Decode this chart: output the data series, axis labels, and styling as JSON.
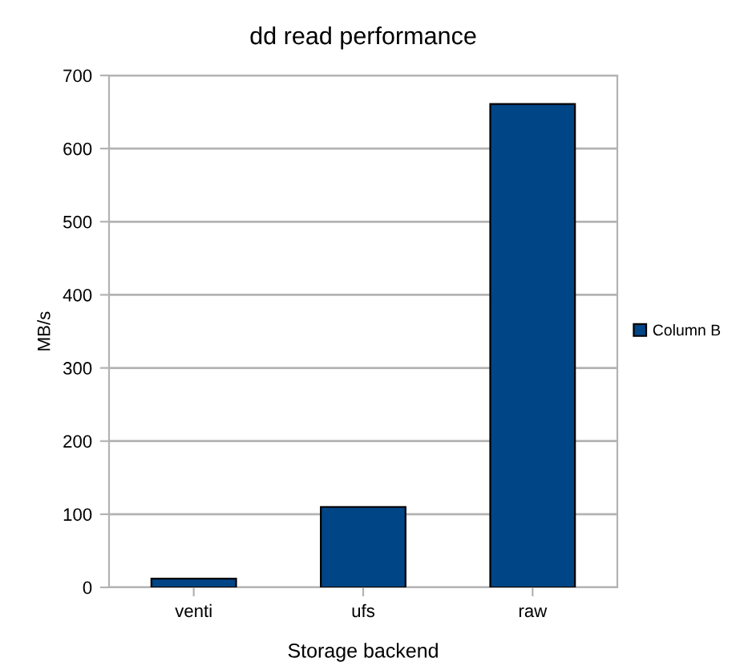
{
  "chart_data": {
    "type": "bar",
    "title": "dd read performance",
    "xlabel": "Storage backend",
    "ylabel": "MB/s",
    "categories": [
      "venti",
      "ufs",
      "raw"
    ],
    "series": [
      {
        "name": "Column B",
        "color": "#004586",
        "values": [
          12,
          110,
          661
        ]
      }
    ],
    "ylim": [
      0,
      700
    ],
    "yticks": [
      0,
      100,
      200,
      300,
      400,
      500,
      600,
      700
    ],
    "grid": "y",
    "legend": "right"
  }
}
